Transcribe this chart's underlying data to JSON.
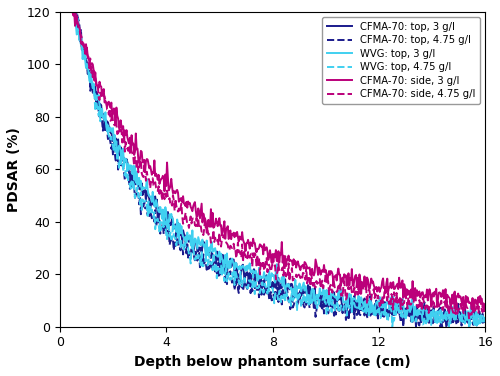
{
  "xlabel": "Depth below phantom surface (cm)",
  "ylabel": "PDSAR (%)",
  "xlim": [
    0,
    16
  ],
  "ylim": [
    0,
    120
  ],
  "xticks": [
    0,
    4,
    8,
    12,
    16
  ],
  "yticks": [
    0,
    20,
    40,
    60,
    80,
    100,
    120
  ],
  "legend": [
    {
      "label": "CFMA-70: top, 3 g/l",
      "color": "#1a1a8c",
      "linestyle": "solid",
      "linewidth": 1.4
    },
    {
      "label": "CFMA-70: top, 4.75 g/l",
      "color": "#1a1a8c",
      "linestyle": "dashed",
      "linewidth": 1.4
    },
    {
      "label": "WVG: top, 3 g/l",
      "color": "#40d0f0",
      "linestyle": "solid",
      "linewidth": 1.4
    },
    {
      "label": "WVG: top, 4.75 g/l",
      "color": "#40d0f0",
      "linestyle": "dashed",
      "linewidth": 1.4
    },
    {
      "label": "CFMA-70: side, 3 g/l",
      "color": "#bb007a",
      "linestyle": "solid",
      "linewidth": 1.4
    },
    {
      "label": "CFMA-70: side, 4.75 g/l",
      "color": "#bb007a",
      "linestyle": "dashed",
      "linewidth": 1.4
    }
  ],
  "curves": [
    {
      "name": "cfma_top_3",
      "x_start": 0.15,
      "peak": 100.0,
      "alpha": 0.52,
      "beta": 0.72,
      "noise_amp": 1.8,
      "noise_seed": 11
    },
    {
      "name": "cfma_top_475",
      "x_start": 0.15,
      "peak": 100.0,
      "alpha": 0.6,
      "beta": 0.72,
      "noise_amp": 1.8,
      "noise_seed": 22
    },
    {
      "name": "wvg_top_3",
      "x_start": 0.15,
      "peak": 100.0,
      "alpha": 0.5,
      "beta": 0.72,
      "noise_amp": 1.8,
      "noise_seed": 33
    },
    {
      "name": "wvg_top_475",
      "x_start": 0.15,
      "peak": 100.0,
      "alpha": 0.58,
      "beta": 0.72,
      "noise_amp": 1.8,
      "noise_seed": 44
    },
    {
      "name": "cfma_side_3",
      "x_start": 0.15,
      "peak": 104.0,
      "alpha": 0.38,
      "beta": 0.72,
      "noise_amp": 1.8,
      "noise_seed": 55
    },
    {
      "name": "cfma_side_475",
      "x_start": 0.15,
      "peak": 104.0,
      "alpha": 0.44,
      "beta": 0.72,
      "noise_amp": 1.8,
      "noise_seed": 66
    }
  ]
}
